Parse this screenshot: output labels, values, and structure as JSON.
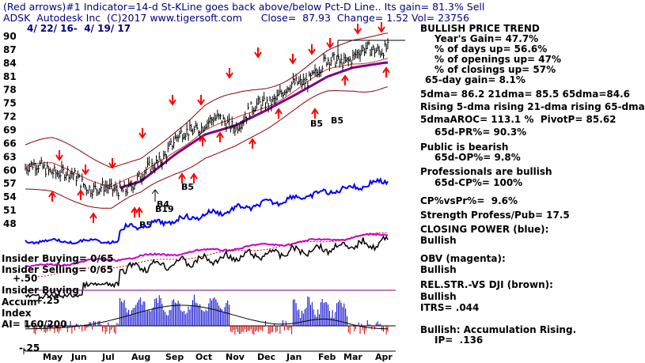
{
  "header": {
    "line1": "(Red arrows)#1 Indicator=14-d St-KLine goes back above/below Pct-D Line.. Its gain= 81.3% Sell",
    "line2": "ADSK  Autodesk Inc  (C)2017 www.tigersoft.com      Close=  87.93  Change= 1.52 Vol= 23756",
    "date_range": "4/ 22/ 16-  4/ 19/ 17"
  },
  "stats": {
    "title": "BULLISH PRICE TREND",
    "lines": [
      "Year's Gain= 47.7%",
      "% of days up= 56.6%",
      "% of openings up= 47%",
      "% of closings up= 57%",
      "65-day gain= 8.1%",
      "5dma= 86.2 21dma= 85.5 65dma=84.6",
      "Rising 5-dma rising 21-dma rising 65-dma",
      "5dmaAROC= 113.1 %  PivotP= 85.62",
      "65d-PR%= 90.3%",
      "Public is bearish",
      "65d-OP%= 9.8%",
      "Professionals are bullish",
      "65d-CP%= 100%",
      "CP%vsPr%=  9.6%",
      "Strength Profess/Pub= 17.5",
      "CLOSING POWER (blue):",
      "Bullish",
      "OBV (magenta):",
      "Bullish",
      "REL.STR.-VS DJI (brown):",
      "Bullish",
      "ITRS= .044",
      "Bullish: Accumulation Rising.",
      "IP=  .136"
    ]
  },
  "left_labels": {
    "insider_buying_count": "Insider Buying= 0/65",
    "insider_selling_count": "Insider Selling= 0/65",
    "plus50": "+.50",
    "insider_buying": "Insider Buying",
    "accum": "Accum",
    "plus25": "+.25",
    "index": "Index",
    "ai": "AI= 160/200",
    "minus25": "-.25"
  },
  "chart_data": {
    "type": "line",
    "price_ticks": [
      "90",
      "87",
      "84",
      "81",
      "78",
      "75",
      "72",
      "69",
      "66",
      "63",
      "60",
      "57",
      "54",
      "51",
      "48"
    ],
    "ylim": [
      45,
      91.5
    ],
    "months": [
      "May",
      "Jun",
      "Jul",
      "Aug",
      "Sep",
      "Oct",
      "Nov",
      "Dec",
      "Jan",
      "Feb",
      "Mar",
      "Apr"
    ],
    "x": [
      "May",
      "Jun",
      "Jul",
      "Aug",
      "Sep",
      "Oct",
      "Nov",
      "Dec",
      "Jan",
      "Feb",
      "Mar",
      "Apr"
    ],
    "series": [
      {
        "values": [
          60.5,
          57.5,
          55,
          58,
          66.5,
          71,
          70.5,
          75.5,
          79,
          84,
          85.5,
          87.9
        ]
      },
      {
        "values": [
          60.5,
          58.5,
          56,
          58,
          64,
          68.5,
          70.5,
          74,
          77.5,
          81.5,
          83.5,
          84.6
        ]
      }
    ],
    "signals": [
      "B5",
      "B5",
      "B5",
      "B5",
      "B19",
      "B4"
    ],
    "colors": {
      "price": "#000000",
      "ma65": "#800080",
      "band": "#8b0000",
      "cp": "#0000ff",
      "obv": "#cc00cc",
      "rs": "#8b4513",
      "accum": "#0000cd",
      "distr": "#cc0000",
      "arrow": "#ff0000"
    }
  }
}
